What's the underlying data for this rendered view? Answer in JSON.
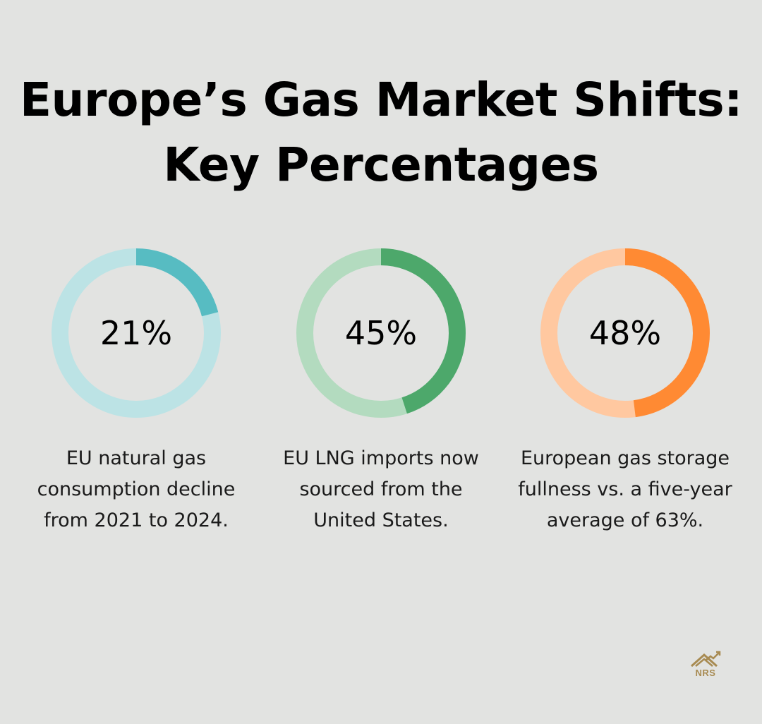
{
  "title_lines": [
    "Europe’s Gas Market Shifts:",
    "Key Percentages"
  ],
  "chart_data": [
    {
      "type": "pie",
      "value": 21,
      "label": "21%",
      "description": "EU natural gas consumption decline from 2021 to 2024.",
      "color": "#57bcc2",
      "track_color": "#bce3e5"
    },
    {
      "type": "pie",
      "value": 45,
      "label": "45%",
      "description": "EU LNG imports now sourced from the United States.",
      "color": "#4da86b",
      "track_color": "#b3dbbf"
    },
    {
      "type": "pie",
      "value": 48,
      "label": "48%",
      "description": "European gas storage fullness vs. a five-year average of 63%.",
      "color": "#ff8a33",
      "track_color": "#ffc8a0"
    }
  ],
  "logo": {
    "text": "NRS",
    "icon": "house-chart-icon",
    "color": "#a88b52"
  }
}
